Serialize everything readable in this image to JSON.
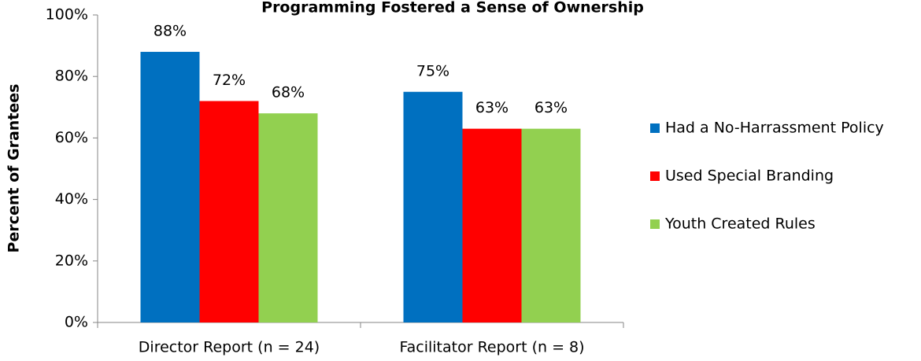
{
  "chart_data": {
    "type": "bar",
    "title": "Programming Fostered a Sense of Ownership",
    "y_label": "Percent of Grantees",
    "categories": [
      "Director Report (n = 24)",
      "Facilitator Report (n = 8)"
    ],
    "series": [
      {
        "name": "Had a No-Harrassment Policy",
        "color": "#0070c0",
        "values": [
          88,
          75
        ],
        "value_labels": [
          "88%",
          "75%"
        ]
      },
      {
        "name": "Used Special Branding",
        "color": "#ff0000",
        "values": [
          72,
          63
        ],
        "value_labels": [
          "72%",
          "63%"
        ]
      },
      {
        "name": "Youth Created Rules",
        "color": "#92d050",
        "values": [
          68,
          63
        ],
        "value_labels": [
          "68%",
          "63%"
        ]
      }
    ],
    "ylim": [
      0,
      100
    ],
    "yticks": [
      {
        "value": 0,
        "label": "0%"
      },
      {
        "value": 20,
        "label": "20%"
      },
      {
        "value": 40,
        "label": "40%"
      },
      {
        "value": 60,
        "label": "60%"
      },
      {
        "value": 80,
        "label": "80%"
      },
      {
        "value": 100,
        "label": "100%"
      }
    ],
    "legend": "right"
  }
}
